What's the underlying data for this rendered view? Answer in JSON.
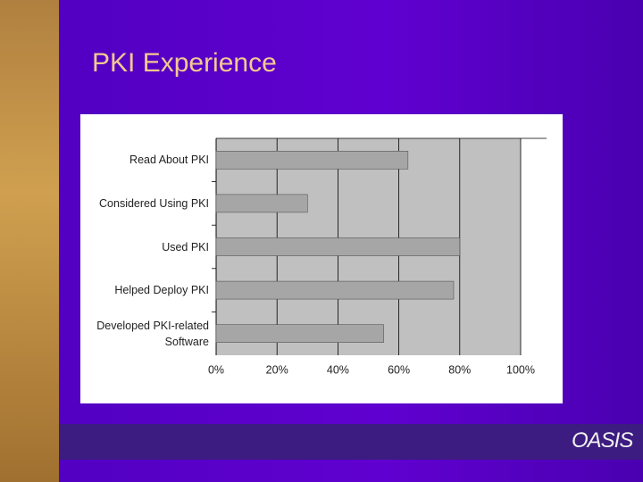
{
  "slide_title": "PKI Experience",
  "logo": "OASIS",
  "chart_data": {
    "type": "bar",
    "orientation": "horizontal",
    "categories": [
      "Read About PKI",
      "Considered Using PKI",
      "Used PKI",
      "Helped Deploy PKI",
      "Developed PKI-related Software"
    ],
    "values": [
      63,
      30,
      80,
      78,
      55
    ],
    "color": "#a6a6a6",
    "xlim": [
      0,
      100
    ],
    "xticks": [
      {
        "value": 0,
        "label": "0%"
      },
      {
        "value": 20,
        "label": "20%"
      },
      {
        "value": 40,
        "label": "40%"
      },
      {
        "value": 60,
        "label": "60%"
      },
      {
        "value": 80,
        "label": "80%"
      },
      {
        "value": 100,
        "label": "100%"
      }
    ],
    "grid": true
  }
}
